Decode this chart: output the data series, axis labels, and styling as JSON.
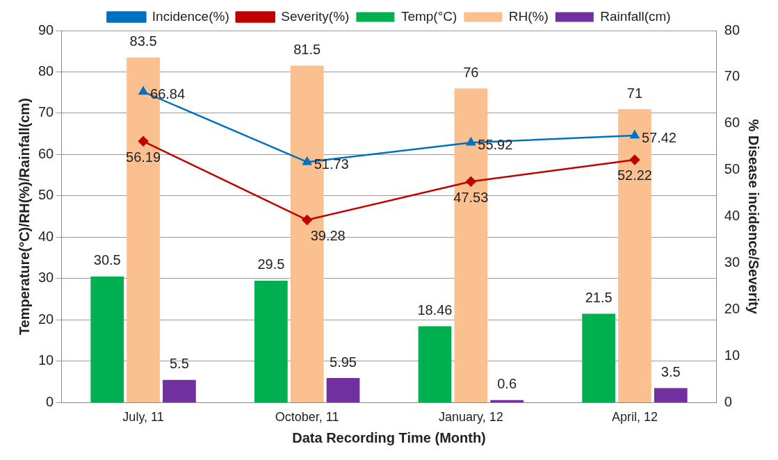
{
  "chart_data": {
    "type": "bar",
    "xlabel": "Data Recording Time (Month)",
    "ylabel": "Temperature(°C)/RH(%)/Rainfall(cm)",
    "y2label": "% Disease incidence/Severity",
    "categories": [
      "July, 11",
      "October, 11",
      "January, 12",
      "April, 12"
    ],
    "series": [
      {
        "name": "Temp(°C)",
        "color": "#00b050",
        "values": [
          30.5,
          29.5,
          18.46,
          21.5
        ]
      },
      {
        "name": "RH(%)",
        "color": "#fac090",
        "values": [
          83.5,
          81.5,
          76,
          71
        ]
      },
      {
        "name": "Rainfall(cm)",
        "color": "#7030a0",
        "values": [
          5.5,
          5.95,
          0.6,
          3.5
        ]
      },
      {
        "name": "Incidence(%)",
        "type": "line",
        "axis": "y2",
        "marker": "triangle",
        "color": "#0070c0",
        "values": [
          66.84,
          51.73,
          55.92,
          57.42
        ]
      },
      {
        "name": "Severity(%)",
        "type": "line",
        "axis": "y2",
        "marker": "diamond",
        "color": "#c00000",
        "values": [
          56.19,
          39.28,
          47.53,
          52.22
        ]
      }
    ],
    "ylim": [
      0,
      90
    ],
    "yticks": [
      0,
      10,
      20,
      30,
      40,
      50,
      60,
      70,
      80,
      90
    ],
    "y2lim": [
      0,
      80
    ],
    "y2ticks": [
      0,
      10,
      20,
      30,
      40,
      50,
      60,
      70,
      80
    ],
    "grid": "y",
    "legend": "top",
    "data_labels": true
  }
}
